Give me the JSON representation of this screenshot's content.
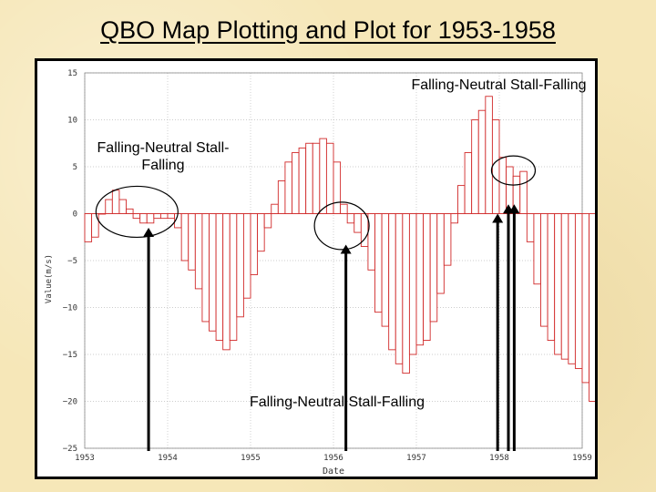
{
  "slide_title": "QBO Map Plotting and Plot for 1953-1958",
  "chart_data": {
    "type": "bar",
    "ylabel": "Value(m/s)",
    "xlabel": "Date",
    "ylim": [
      -25,
      15
    ],
    "xlim": [
      1953,
      1959
    ],
    "y_ticks": [
      "15",
      "10",
      "5",
      "0",
      "-5",
      "-10",
      "-15",
      "-20",
      "-25"
    ],
    "x_ticks": [
      "1953",
      "1954",
      "1955",
      "1956",
      "1957",
      "1958",
      "1959"
    ],
    "grid": true,
    "annotations": [
      {
        "text": "Falling-Neutral Stall-Falling",
        "near": "1958"
      },
      {
        "text": "Falling-Neutral Stall-Falling",
        "near": "1953.8"
      },
      {
        "text": "Falling-Neutral Stall-Falling",
        "near": "1956.1"
      }
    ],
    "values": [
      -3,
      -2.5,
      0,
      1.5,
      2.5,
      1.5,
      0.5,
      -0.5,
      -1,
      -1,
      -0.5,
      -0.5,
      -0.5,
      -1.5,
      -5,
      -6,
      -8,
      -11.5,
      -12.5,
      -13.5,
      -14.5,
      -13.5,
      -11,
      -9,
      -6.5,
      -4,
      -1.5,
      1,
      3.5,
      5.5,
      6.5,
      7,
      7.5,
      7.5,
      8,
      7.5,
      5.5,
      1,
      -1,
      -2,
      -3.5,
      -6,
      -10.5,
      -12,
      -14.5,
      -16,
      -17,
      -15,
      -14,
      -13.5,
      -11.5,
      -8.5,
      -5.5,
      -1,
      3,
      6.5,
      10,
      11,
      12.5,
      10,
      6,
      5,
      4,
      4.5,
      -3,
      -7.5,
      -12,
      -13.5,
      -15,
      -15.5,
      -16,
      -16.5,
      -18,
      -20
    ]
  }
}
